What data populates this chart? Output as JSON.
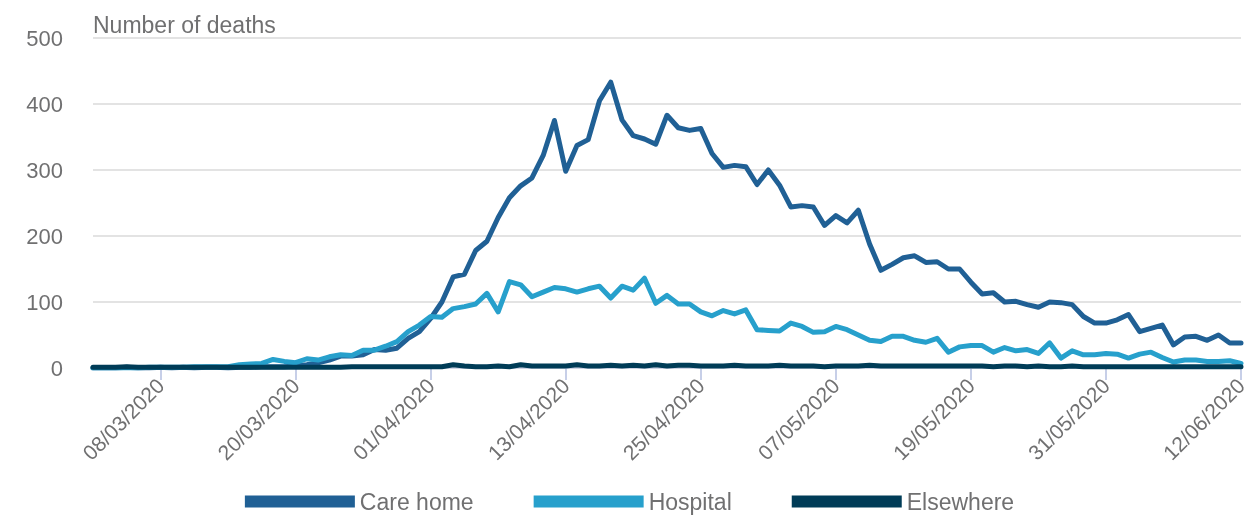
{
  "chart_data": {
    "type": "line",
    "ylabel": "Number of deaths",
    "x": [
      "2020-03-02",
      "2020-03-03",
      "2020-03-04",
      "2020-03-05",
      "2020-03-06",
      "2020-03-07",
      "2020-03-08",
      "2020-03-09",
      "2020-03-10",
      "2020-03-11",
      "2020-03-12",
      "2020-03-13",
      "2020-03-14",
      "2020-03-15",
      "2020-03-16",
      "2020-03-17",
      "2020-03-18",
      "2020-03-19",
      "2020-03-20",
      "2020-03-21",
      "2020-03-22",
      "2020-03-23",
      "2020-03-24",
      "2020-03-25",
      "2020-03-26",
      "2020-03-27",
      "2020-03-28",
      "2020-03-29",
      "2020-03-30",
      "2020-03-31",
      "2020-04-01",
      "2020-04-02",
      "2020-04-03",
      "2020-04-04",
      "2020-04-05",
      "2020-04-06",
      "2020-04-07",
      "2020-04-08",
      "2020-04-09",
      "2020-04-10",
      "2020-04-11",
      "2020-04-12",
      "2020-04-13",
      "2020-04-14",
      "2020-04-15",
      "2020-04-16",
      "2020-04-17",
      "2020-04-18",
      "2020-04-19",
      "2020-04-20",
      "2020-04-21",
      "2020-04-22",
      "2020-04-23",
      "2020-04-24",
      "2020-04-25",
      "2020-04-26",
      "2020-04-27",
      "2020-04-28",
      "2020-04-29",
      "2020-04-30",
      "2020-05-01",
      "2020-05-02",
      "2020-05-03",
      "2020-05-04",
      "2020-05-05",
      "2020-05-06",
      "2020-05-07",
      "2020-05-08",
      "2020-05-09",
      "2020-05-10",
      "2020-05-11",
      "2020-05-12",
      "2020-05-13",
      "2020-05-14",
      "2020-05-15",
      "2020-05-16",
      "2020-05-17",
      "2020-05-18",
      "2020-05-19",
      "2020-05-20",
      "2020-05-21",
      "2020-05-22",
      "2020-05-23",
      "2020-05-24",
      "2020-05-25",
      "2020-05-26",
      "2020-05-27",
      "2020-05-28",
      "2020-05-29",
      "2020-05-30",
      "2020-05-31",
      "2020-06-01",
      "2020-06-02",
      "2020-06-03",
      "2020-06-04",
      "2020-06-05",
      "2020-06-06",
      "2020-06-07",
      "2020-06-08",
      "2020-06-09",
      "2020-06-10",
      "2020-06-11",
      "2020-06-12"
    ],
    "xlim": [
      "2020-03-02",
      "2020-06-12"
    ],
    "xticks": [
      {
        "value": "2020-03-08",
        "label": "08/03/2020"
      },
      {
        "value": "2020-03-20",
        "label": "20/03/2020"
      },
      {
        "value": "2020-04-01",
        "label": "01/04/2020"
      },
      {
        "value": "2020-04-13",
        "label": "13/04/2020"
      },
      {
        "value": "2020-04-25",
        "label": "25/04/2020"
      },
      {
        "value": "2020-05-07",
        "label": "07/05/2020"
      },
      {
        "value": "2020-05-19",
        "label": "19/05/2020"
      },
      {
        "value": "2020-05-31",
        "label": "31/05/2020"
      },
      {
        "value": "2020-06-12",
        "label": "12/06/2020"
      }
    ],
    "ylim": [
      0,
      500
    ],
    "yticks": [
      0,
      100,
      200,
      300,
      400,
      500
    ],
    "grid": "y",
    "legend": "bottom",
    "marker": "none",
    "line_style": "solid",
    "series": [
      {
        "name": "Care home",
        "color": "#206095",
        "values": [
          0,
          0,
          0,
          1,
          0,
          0,
          1,
          0,
          1,
          0,
          1,
          1,
          0,
          1,
          1,
          2,
          2,
          2,
          3,
          5,
          8,
          12,
          18,
          18,
          20,
          28,
          27,
          30,
          45,
          55,
          75,
          100,
          138,
          142,
          178,
          192,
          228,
          258,
          276,
          288,
          322,
          375,
          298,
          337,
          346,
          405,
          433,
          376,
          352,
          347,
          339,
          383,
          364,
          360,
          363,
          325,
          304,
          307,
          305,
          278,
          300,
          277,
          244,
          246,
          244,
          216,
          231,
          220,
          239,
          188,
          148,
          157,
          167,
          170,
          160,
          161,
          150,
          150,
          130,
          112,
          114,
          100,
          101,
          96,
          92,
          100,
          99,
          96,
          78,
          68,
          68,
          73,
          81,
          55,
          60,
          65,
          35,
          47,
          48,
          42,
          50,
          38,
          38
        ]
      },
      {
        "name": "Hospital",
        "color": "#27a0cc",
        "values": [
          0,
          0,
          0,
          0,
          0,
          1,
          1,
          1,
          1,
          2,
          2,
          2,
          2,
          5,
          6,
          7,
          13,
          10,
          8,
          14,
          12,
          17,
          20,
          19,
          27,
          27,
          33,
          40,
          55,
          65,
          78,
          77,
          90,
          93,
          97,
          113,
          85,
          131,
          126,
          108,
          115,
          122,
          120,
          115,
          120,
          124,
          106,
          124,
          118,
          136,
          98,
          110,
          97,
          97,
          85,
          79,
          87,
          82,
          88,
          58,
          57,
          56,
          68,
          63,
          54,
          55,
          63,
          58,
          50,
          42,
          40,
          48,
          48,
          42,
          39,
          45,
          24,
          32,
          34,
          34,
          24,
          31,
          26,
          28,
          22,
          38,
          15,
          26,
          20,
          20,
          22,
          21,
          15,
          21,
          24,
          16,
          9,
          12,
          12,
          10,
          10,
          11,
          7
        ]
      },
      {
        "name": "Elsewhere",
        "color": "#003c57",
        "values": [
          1,
          1,
          1,
          2,
          1,
          1,
          1,
          1,
          1,
          1,
          1,
          1,
          1,
          1,
          1,
          1,
          1,
          1,
          1,
          1,
          1,
          1,
          1,
          2,
          2,
          2,
          2,
          2,
          2,
          2,
          2,
          2,
          5,
          3,
          2,
          2,
          3,
          2,
          5,
          3,
          3,
          3,
          3,
          5,
          3,
          3,
          4,
          3,
          4,
          3,
          5,
          3,
          4,
          4,
          3,
          3,
          3,
          4,
          3,
          3,
          3,
          4,
          3,
          3,
          3,
          2,
          3,
          3,
          3,
          4,
          3,
          3,
          3,
          3,
          3,
          3,
          3,
          3,
          3,
          3,
          2,
          3,
          3,
          2,
          3,
          2,
          2,
          3,
          2,
          2,
          2,
          2,
          2,
          2,
          2,
          2,
          2,
          2,
          2,
          2,
          2,
          2,
          2
        ]
      }
    ]
  }
}
